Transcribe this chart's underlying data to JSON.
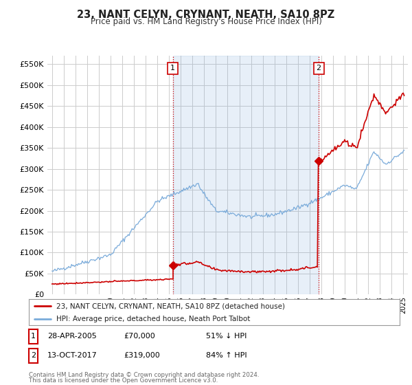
{
  "title": "23, NANT CELYN, CRYNANT, NEATH, SA10 8PZ",
  "subtitle": "Price paid vs. HM Land Registry's House Price Index (HPI)",
  "ylim": [
    0,
    570000
  ],
  "yticks": [
    0,
    50000,
    100000,
    150000,
    200000,
    250000,
    300000,
    350000,
    400000,
    450000,
    500000,
    550000
  ],
  "ytick_labels": [
    "£0",
    "£50K",
    "£100K",
    "£150K",
    "£200K",
    "£250K",
    "£300K",
    "£350K",
    "£400K",
    "£450K",
    "£500K",
    "£550K"
  ],
  "xlim_start": 1994.6,
  "xlim_end": 2025.4,
  "sale1_x": 2005.32,
  "sale1_y": 70000,
  "sale2_x": 2017.78,
  "sale2_y": 319000,
  "vline1_x": 2005.32,
  "vline2_x": 2017.78,
  "legend_line1": "23, NANT CELYN, CRYNANT, NEATH, SA10 8PZ (detached house)",
  "legend_line2": "HPI: Average price, detached house, Neath Port Talbot",
  "annotation1_label": "1",
  "annotation2_label": "2",
  "fn1_date": "28-APR-2005",
  "fn1_price": "£70,000",
  "fn1_hpi": "51% ↓ HPI",
  "fn2_date": "13-OCT-2017",
  "fn2_price": "£319,000",
  "fn2_hpi": "84% ↑ HPI",
  "footnote3": "Contains HM Land Registry data © Crown copyright and database right 2024.",
  "footnote4": "This data is licensed under the Open Government Licence v3.0.",
  "color_red": "#cc0000",
  "color_blue": "#7aabda",
  "color_blue_fill": "#ddeeff",
  "background_color": "#ffffff",
  "grid_color": "#cccccc"
}
